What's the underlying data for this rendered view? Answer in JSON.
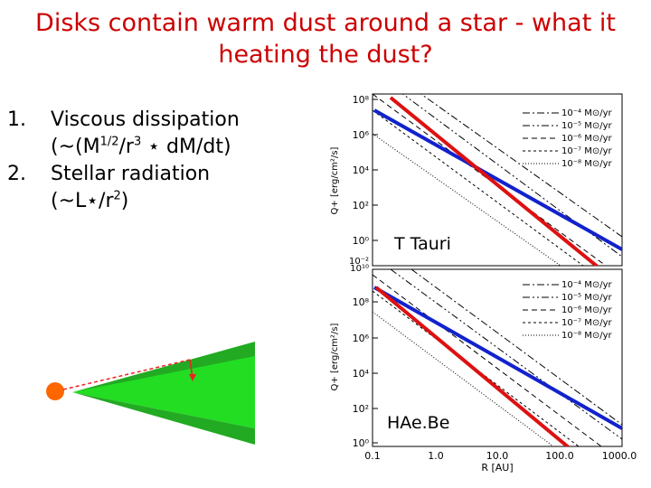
{
  "title_line1": "Disks contain warm dust around a star - what it",
  "title_line2": "heating the dust?",
  "items": [
    {
      "num": "1.",
      "line1_pre": "Viscous dissipation",
      "line2_pre": "(~(M",
      "sup1": "1/2",
      "mid": "/r",
      "sup2": "3",
      "post": " ⋆ dM/dt)"
    },
    {
      "num": "2.",
      "line1_pre": "Stellar radiation",
      "line2_pre": "(~L⋆/r",
      "sup1": "2",
      "post": ")"
    }
  ],
  "colors": {
    "title": "#cc0000",
    "stellar_curve": "#dd1111",
    "viscous_curve": "#1122cc",
    "disk": "#22dd22",
    "star": "#ff6600"
  },
  "plots": [
    {
      "label": "T Tauri",
      "ylabel": "Q+ [erg/cm²/s]",
      "y_ticks": [
        "10⁰",
        "10²",
        "10⁴",
        "10⁶",
        "10⁸"
      ],
      "y_bottom_tick": "10⁻²",
      "legend": [
        "10⁻⁴ M⊙/yr",
        "10⁻⁵ M⊙/yr",
        "10⁻⁶ M⊙/yr",
        "10⁻⁷ M⊙/yr",
        "10⁻⁸ M⊙/yr"
      ]
    },
    {
      "label": "HAe.Be",
      "ylabel": "Q+ [erg/cm²/s]",
      "y_ticks": [
        "10⁰",
        "10²",
        "10⁴",
        "10⁶",
        "10⁸"
      ],
      "y_top_tick": "10¹⁰",
      "legend": [
        "10⁻⁴ M⊙/yr",
        "10⁻⁵ M⊙/yr",
        "10⁻⁶ M⊙/yr",
        "10⁻⁷ M⊙/yr",
        "10⁻⁸ M⊙/yr"
      ]
    }
  ],
  "x_ticks": [
    "0.1",
    "1.0",
    "10.0",
    "100.0",
    "1000.0"
  ],
  "xlabel": "R [AU]"
}
